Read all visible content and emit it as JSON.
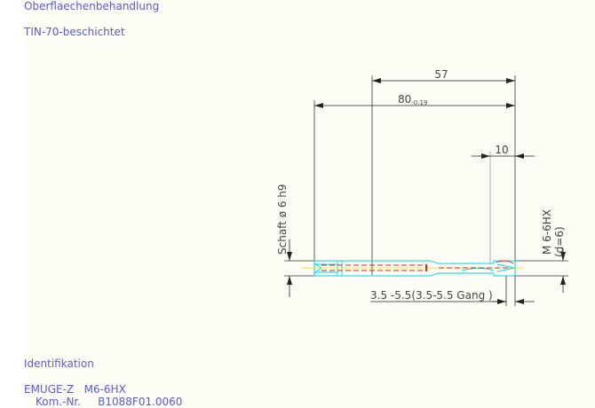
{
  "notes": {
    "surface_label": "Oberflaechenbehandlung",
    "surface_value": "TIN-70-beschichtet",
    "ident_label": "Identifikation",
    "ident_product": "EMUGE-Z   M6-6HX",
    "ident_kom": "Kom.-Nr.     B1088F01.0060"
  },
  "drawing": {
    "dim_57": "57",
    "dim_80": "80",
    "dim_80_tol": "-0.19",
    "dim_10": "10",
    "shank": "Schaft ø 6 h9",
    "thread": "M 6-6HX",
    "thread_d": "(d=6)",
    "range": "3.5 -5.5(3.5-5.5 Gang  )",
    "colors": {
      "outline": "#00d8e8",
      "hidden": "#e02020",
      "center": "#e8e000",
      "dims": "#333333",
      "text": "#5a5ad6"
    }
  }
}
